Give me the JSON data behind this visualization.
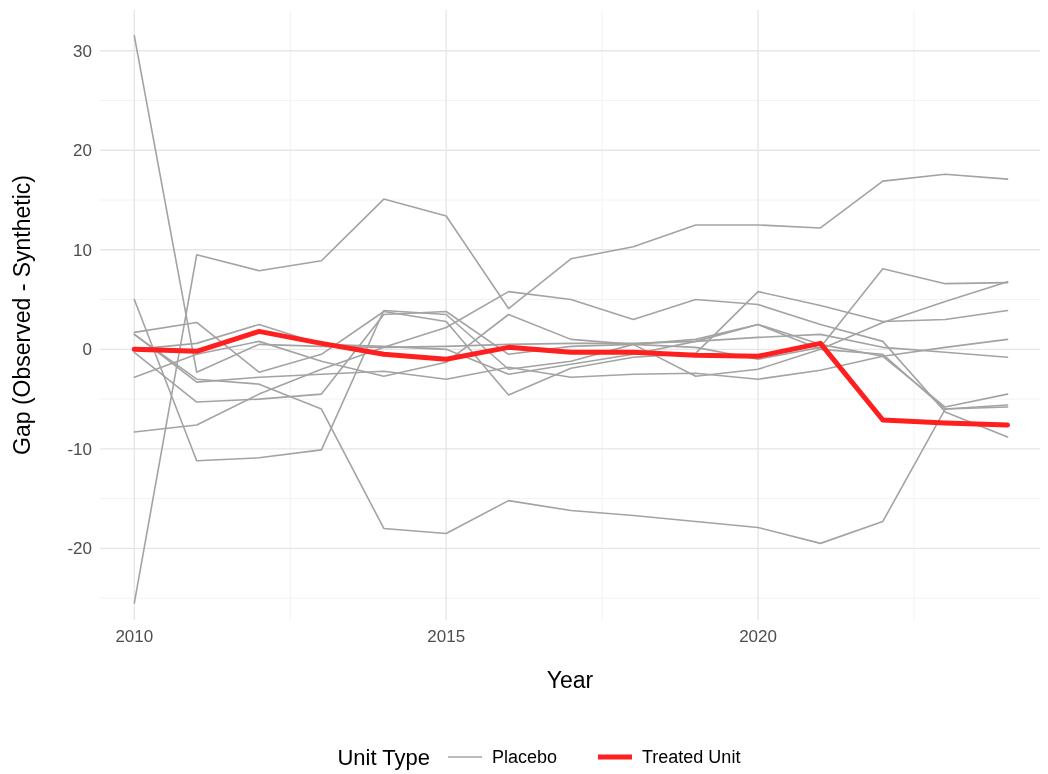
{
  "chart_data": {
    "type": "line",
    "xlabel": "Year",
    "ylabel": "Gap (Observed - Synthetic)",
    "legend_title": "Unit Type",
    "x": [
      2010,
      2011,
      2012,
      2013,
      2014,
      2015,
      2016,
      2017,
      2018,
      2019,
      2020,
      2021,
      2022,
      2023,
      2024
    ],
    "series": [
      {
        "name": "Placebo",
        "color": "#a3a3a3",
        "values": [
          31.5,
          -2.3,
          0.5,
          0.3,
          0.2,
          0.3,
          0.5,
          0.6,
          0.6,
          0.8,
          1.2,
          1.5,
          0.2,
          -0.3,
          -0.8
        ]
      },
      {
        "color": "#a3a3a3",
        "values": [
          -25.5,
          9.5,
          7.9,
          8.9,
          15.1,
          13.4,
          4.1,
          9.1,
          10.3,
          12.5,
          12.5,
          12.2,
          16.9,
          17.6,
          17.1
        ]
      },
      {
        "color": "#a3a3a3",
        "values": [
          5,
          -11.2,
          -10.9,
          -10.1,
          3.9,
          3.5,
          -2.0,
          -1.2,
          0.5,
          1.0,
          2.5,
          0,
          -0.5,
          -6.0,
          -5.8
        ]
      },
      {
        "color": "#a3a3a3",
        "values": [
          1.5,
          -3.0,
          -3.5,
          -6.0,
          -18.0,
          -18.5,
          -15.2,
          -16.2,
          -16.7,
          -17.3,
          -17.9,
          -19.5,
          -17.3,
          -6.0,
          -5.6
        ]
      },
      {
        "color": "#a3a3a3",
        "values": [
          -8.3,
          -7.6,
          -4.5,
          -2.0,
          0.2,
          2.2,
          5.8,
          5.0,
          3.0,
          5.0,
          4.5,
          2.5,
          0.8,
          -6.3,
          -8.8
        ]
      },
      {
        "color": "#a3a3a3",
        "values": [
          1.7,
          2.7,
          -2.3,
          -0.5,
          3.8,
          2.8,
          -4.6,
          -1.9,
          -0.8,
          -0.4,
          5.8,
          4.4,
          2.8,
          3.0,
          3.9
        ]
      },
      {
        "color": "#a3a3a3",
        "values": [
          -2.8,
          -0.5,
          0.8,
          -1.2,
          -2.7,
          -1.3,
          3.5,
          1.0,
          0.5,
          0.2,
          -1.0,
          0.2,
          8.1,
          6.6,
          6.7
        ]
      },
      {
        "color": "#a3a3a3",
        "values": [
          1.5,
          -3.3,
          -2.8,
          -2.5,
          -2.2,
          -3.0,
          -1.8,
          -2.8,
          -2.5,
          -2.4,
          -3.0,
          -2.1,
          -0.7,
          0.2,
          1.0
        ]
      },
      {
        "color": "#a3a3a3",
        "values": [
          -0.3,
          -5.3,
          -5.0,
          -4.5,
          3.5,
          3.8,
          -0.5,
          0.3,
          0.5,
          -2.7,
          -2.0,
          0,
          2.7,
          4.8,
          6.8
        ]
      },
      {
        "color": "#a3a3a3",
        "values": [
          0.0,
          0.6,
          2.5,
          0.5,
          0.3,
          0.0,
          -2.5,
          -1.5,
          -0.5,
          0.8,
          2.5,
          0.5,
          -0.7,
          -5.8,
          -4.5
        ]
      },
      {
        "name": "Treated Unit",
        "color": "#ff1f1f",
        "values": [
          0,
          -0.2,
          1.8,
          0.6,
          -0.5,
          -1.0,
          0.2,
          -0.3,
          -0.3,
          -0.6,
          -0.7,
          0.6,
          -7.1,
          -7.4,
          -7.6
        ]
      }
    ],
    "xlim": [
      2009.45,
      2024.52
    ],
    "xticks": [
      2010,
      2015,
      2020
    ],
    "ylim": [
      -27.2,
      34.1
    ],
    "yticks": [
      -20,
      -10,
      0,
      10,
      20,
      30
    ],
    "grid": true,
    "legend": "bottom",
    "marker": "none",
    "line_style": "solid"
  }
}
